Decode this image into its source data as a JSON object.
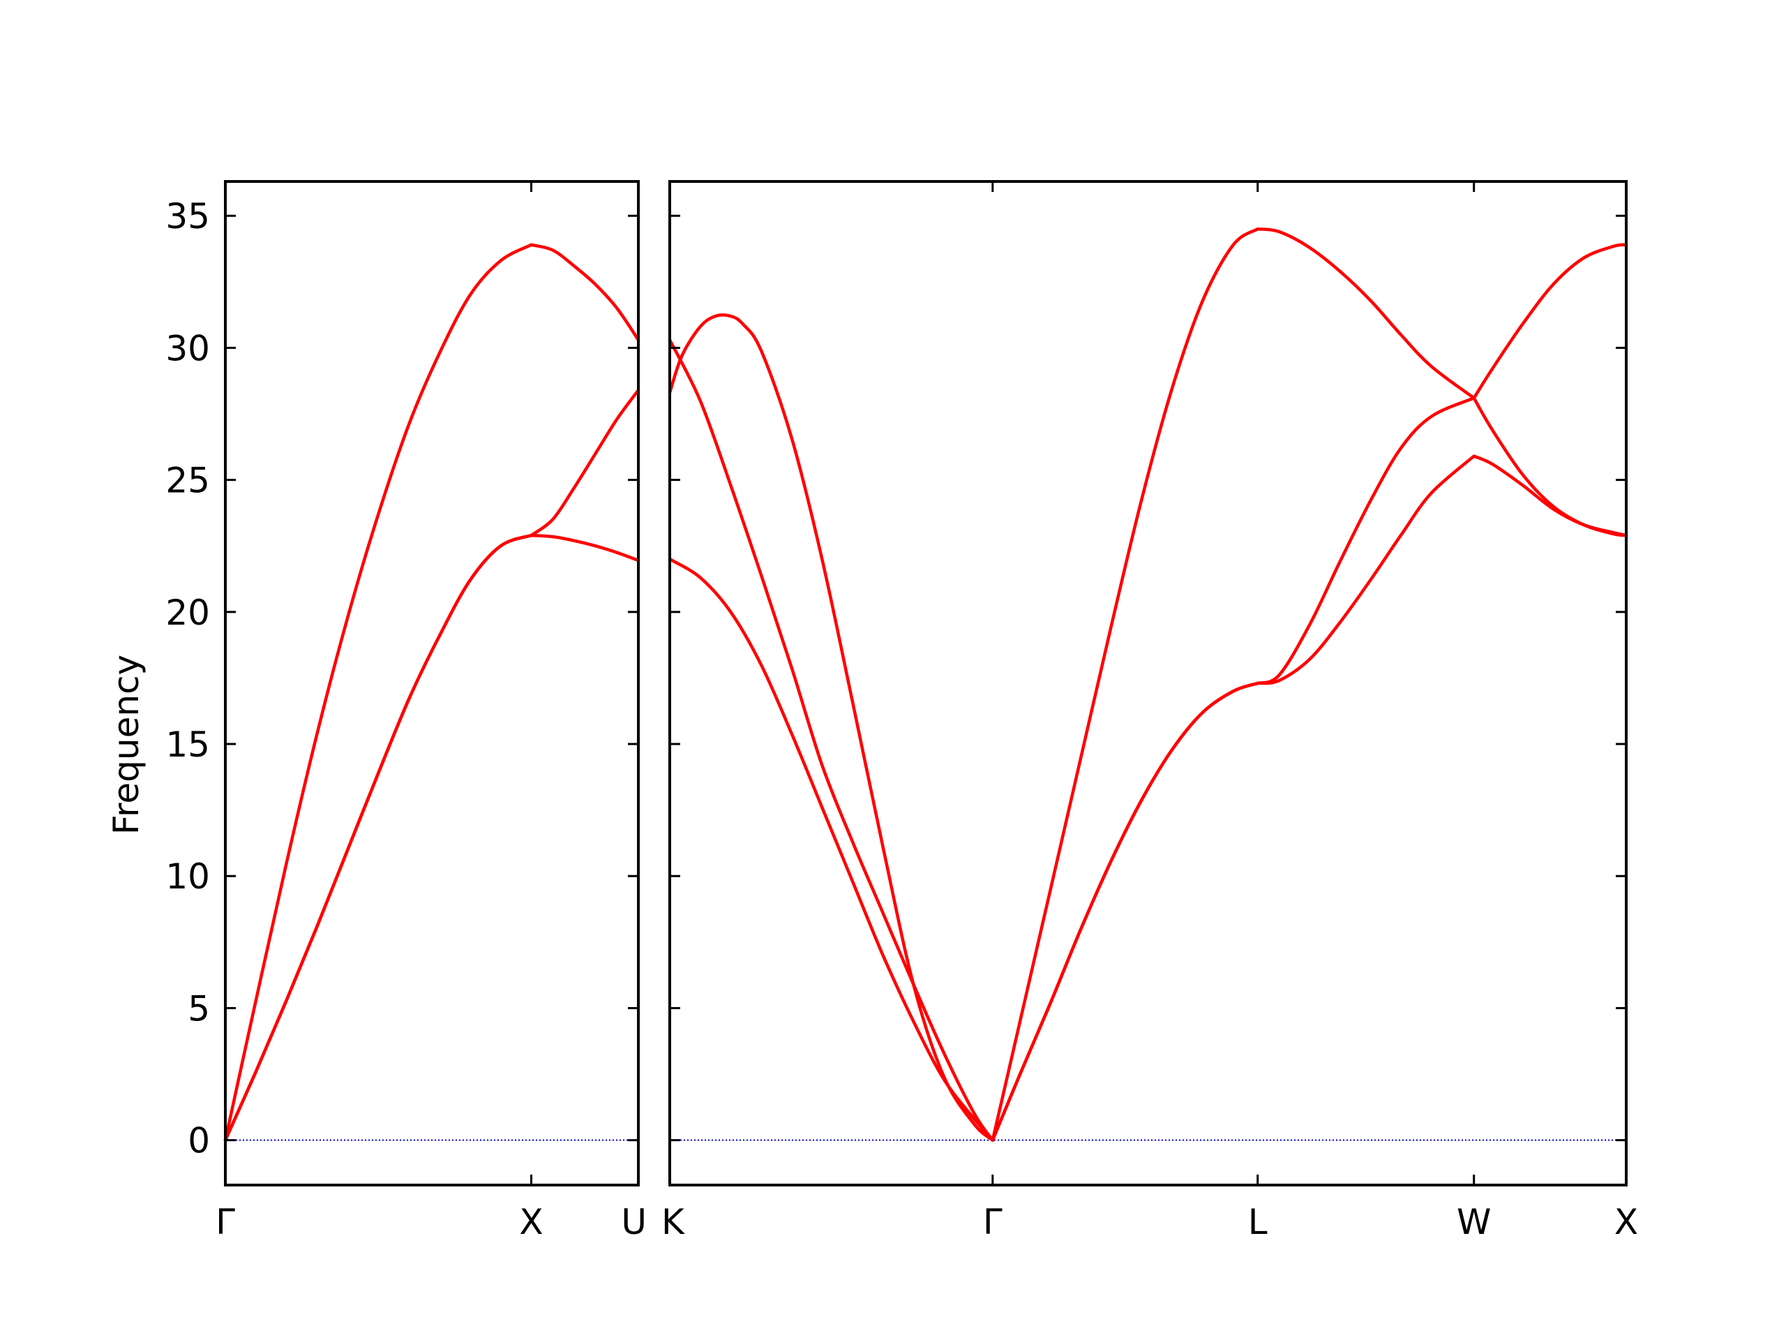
{
  "chart_data": {
    "type": "line",
    "title": "",
    "ylabel": "Frequency",
    "ylim": [
      -1.7,
      36.3
    ],
    "yticks": [
      0,
      5,
      10,
      15,
      20,
      25,
      30,
      35
    ],
    "colors": {
      "band": "#ff0000",
      "zero_line": "#0000cc"
    },
    "grid": false,
    "panels": [
      {
        "name": "panel-left",
        "xlim": [
          0,
          1.35
        ],
        "ticks": [
          {
            "x": 0,
            "label": "Γ"
          },
          {
            "x": 1.0,
            "label": "X"
          },
          {
            "x": 1.35,
            "label": "U"
          }
        ],
        "series": [
          {
            "segments": [
              {
                "x": [
                  0,
                  0.1,
                  0.2,
                  0.3,
                  0.4,
                  0.5,
                  0.6,
                  0.7,
                  0.8,
                  0.9,
                  1.0
                ],
                "y": [
                  0,
                  5.3,
                  10.5,
                  15.4,
                  19.8,
                  23.7,
                  27.1,
                  29.8,
                  32.0,
                  33.3,
                  33.9
                ]
              },
              {
                "x": [
                  1.0,
                  1.07,
                  1.14,
                  1.21,
                  1.28,
                  1.35
                ],
                "y": [
                  33.9,
                  33.7,
                  33.1,
                  32.4,
                  31.5,
                  30.3
                ]
              }
            ]
          },
          {
            "segments": [
              {
                "x": [
                  0,
                  0.1,
                  0.2,
                  0.3,
                  0.4,
                  0.5,
                  0.6,
                  0.7,
                  0.8,
                  0.9,
                  1.0
                ],
                "y": [
                  0,
                  2.6,
                  5.3,
                  8.1,
                  11.0,
                  13.9,
                  16.7,
                  19.1,
                  21.2,
                  22.5,
                  22.9
                ]
              },
              {
                "x": [
                  1.0,
                  1.07,
                  1.14,
                  1.21,
                  1.28,
                  1.35
                ],
                "y": [
                  22.9,
                  23.5,
                  24.7,
                  26.0,
                  27.3,
                  28.4
                ]
              }
            ]
          },
          {
            "segments": [
              {
                "x": [
                  0,
                  0.1,
                  0.2,
                  0.3,
                  0.4,
                  0.5,
                  0.6,
                  0.7,
                  0.8,
                  0.9,
                  1.0
                ],
                "y": [
                  0,
                  2.6,
                  5.3,
                  8.1,
                  11.0,
                  13.9,
                  16.7,
                  19.1,
                  21.2,
                  22.5,
                  22.9
                ]
              },
              {
                "x": [
                  1.0,
                  1.07,
                  1.14,
                  1.21,
                  1.28,
                  1.35
                ],
                "y": [
                  22.9,
                  22.85,
                  22.7,
                  22.5,
                  22.25,
                  21.95
                ]
              }
            ]
          }
        ]
      },
      {
        "name": "panel-right",
        "xlim": [
          0,
          3.14
        ],
        "ticks": [
          {
            "x": 0,
            "label": "K"
          },
          {
            "x": 1.06,
            "label": "Γ"
          },
          {
            "x": 1.93,
            "label": "L"
          },
          {
            "x": 2.64,
            "label": "W"
          },
          {
            "x": 3.14,
            "label": "X"
          }
        ],
        "series": [
          {
            "segments": [
              {
                "x": [
                  0,
                  0.1,
                  0.2,
                  0.3,
                  0.4,
                  0.5,
                  0.6,
                  0.7,
                  0.8,
                  0.9,
                  1.0,
                  1.06
                ],
                "y": [
                  30.3,
                  28.0,
                  24.8,
                  21.4,
                  17.9,
                  14.2,
                  11.3,
                  8.6,
                  5.9,
                  3.3,
                  1.0,
                  0
                ]
              },
              {
                "x": [
                  1.06,
                  1.15,
                  1.25,
                  1.35,
                  1.45,
                  1.55,
                  1.65,
                  1.75,
                  1.85,
                  1.93
                ],
                "y": [
                  0,
                  4.5,
                  9.5,
                  14.5,
                  19.5,
                  24.3,
                  28.5,
                  31.8,
                  33.9,
                  34.5
                ]
              },
              {
                "x": [
                  1.93,
                  2.0,
                  2.1,
                  2.2,
                  2.3,
                  2.4,
                  2.5,
                  2.64
                ],
                "y": [
                  34.5,
                  34.4,
                  33.8,
                  32.9,
                  31.8,
                  30.5,
                  29.3,
                  28.1
                ]
              },
              {
                "x": [
                  2.64,
                  2.7,
                  2.8,
                  2.9,
                  3.0,
                  3.1,
                  3.14
                ],
                "y": [
                  28.1,
                  26.9,
                  25.2,
                  24.0,
                  23.3,
                  22.95,
                  22.9
                ]
              }
            ]
          },
          {
            "segments": [
              {
                "x": [
                  0,
                  0.04,
                  0.1,
                  0.15,
                  0.2,
                  0.24,
                  0.3,
                  0.4,
                  0.5,
                  0.6,
                  0.7,
                  0.8,
                  0.9,
                  1.0,
                  1.06
                ],
                "y": [
                  28.3,
                  29.7,
                  30.8,
                  31.2,
                  31.2,
                  30.9,
                  29.9,
                  26.6,
                  22.0,
                  16.6,
                  11.1,
                  5.9,
                  2.4,
                  0.6,
                  0
                ]
              },
              {
                "x": [
                  1.06,
                  1.15,
                  1.25,
                  1.35,
                  1.45,
                  1.55,
                  1.65,
                  1.75,
                  1.85,
                  1.93
                ],
                "y": [
                  0,
                  2.5,
                  5.2,
                  8.0,
                  10.6,
                  12.9,
                  14.8,
                  16.2,
                  17.0,
                  17.3
                ]
              },
              {
                "x": [
                  1.93,
                  2.0,
                  2.1,
                  2.2,
                  2.3,
                  2.4,
                  2.5,
                  2.64
                ],
                "y": [
                  17.3,
                  17.6,
                  19.5,
                  21.9,
                  24.2,
                  26.2,
                  27.4,
                  28.1
                ]
              },
              {
                "x": [
                  2.64,
                  2.7,
                  2.8,
                  2.9,
                  3.0,
                  3.1,
                  3.14
                ],
                "y": [
                  28.1,
                  29.2,
                  30.9,
                  32.4,
                  33.4,
                  33.85,
                  33.9
                ]
              }
            ]
          },
          {
            "segments": [
              {
                "x": [
                  0,
                  0.1,
                  0.2,
                  0.3,
                  0.4,
                  0.5,
                  0.6,
                  0.7,
                  0.8,
                  0.9,
                  1.0,
                  1.06
                ],
                "y": [
                  22.0,
                  21.3,
                  20.0,
                  18.0,
                  15.4,
                  12.6,
                  9.8,
                  7.0,
                  4.5,
                  2.3,
                  0.8,
                  0
                ]
              },
              {
                "x": [
                  1.06,
                  1.15,
                  1.25,
                  1.35,
                  1.45,
                  1.55,
                  1.65,
                  1.75,
                  1.85,
                  1.93
                ],
                "y": [
                  0,
                  2.5,
                  5.2,
                  8.0,
                  10.6,
                  12.9,
                  14.8,
                  16.2,
                  17.0,
                  17.3
                ]
              },
              {
                "x": [
                  1.93,
                  2.0,
                  2.1,
                  2.2,
                  2.3,
                  2.4,
                  2.5,
                  2.64
                ],
                "y": [
                  17.3,
                  17.4,
                  18.2,
                  19.6,
                  21.2,
                  22.9,
                  24.5,
                  25.9
                ]
              },
              {
                "x": [
                  2.64,
                  2.7,
                  2.8,
                  2.9,
                  3.0,
                  3.1,
                  3.14
                ],
                "y": [
                  25.9,
                  25.6,
                  24.8,
                  23.9,
                  23.3,
                  23.0,
                  22.9
                ]
              }
            ]
          }
        ]
      }
    ]
  }
}
